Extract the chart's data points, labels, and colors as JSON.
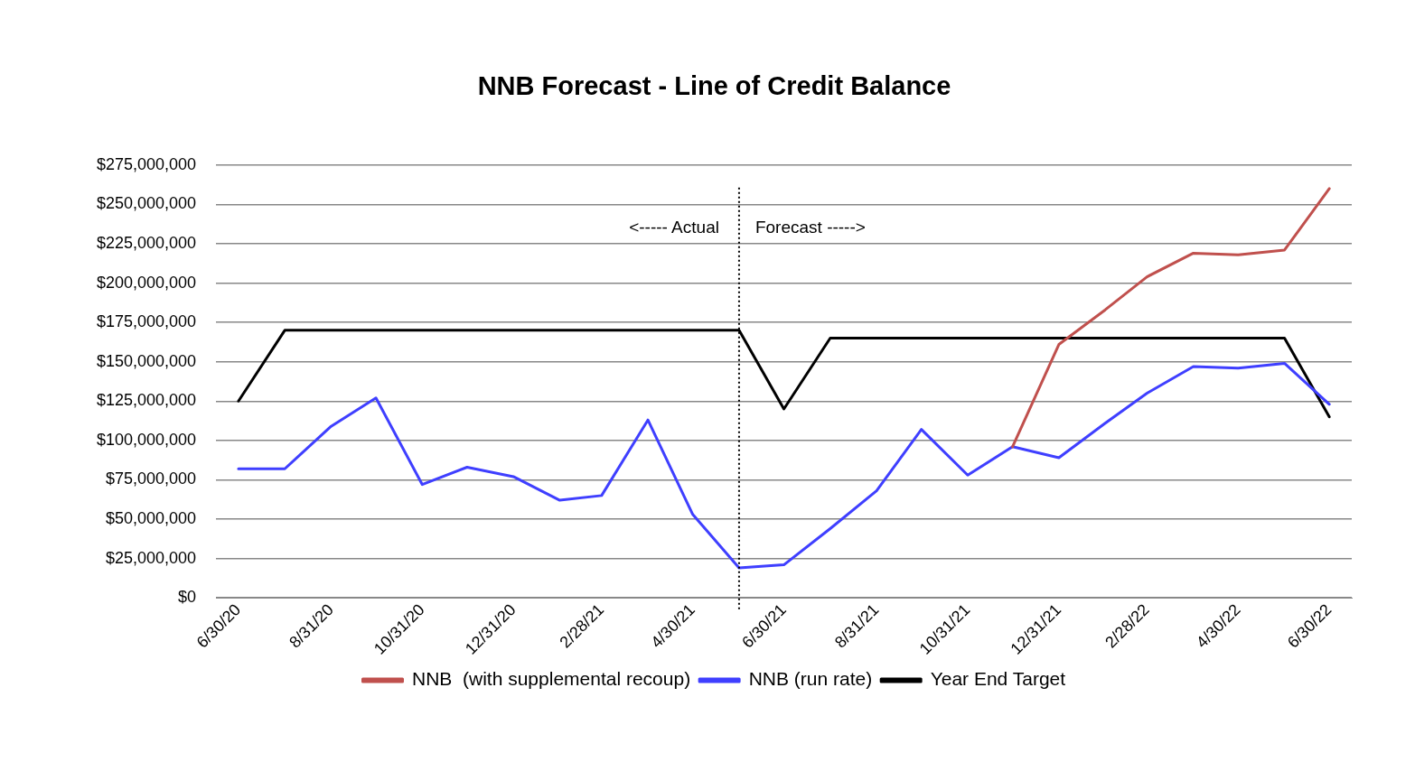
{
  "chart_data": {
    "type": "line",
    "title": "NNB Forecast - Line of Credit Balance",
    "x": [
      "2020-06-30",
      "2020-07-31",
      "2020-08-31",
      "2020-09-30",
      "2020-10-31",
      "2020-11-30",
      "2020-12-31",
      "2021-01-31",
      "2021-02-28",
      "2021-03-31",
      "2021-04-30",
      "2021-05-31",
      "2021-06-30",
      "2021-07-31",
      "2021-08-31",
      "2021-09-30",
      "2021-10-31",
      "2021-11-30",
      "2021-12-31",
      "2022-01-31",
      "2022-02-28",
      "2022-03-31",
      "2022-04-30",
      "2022-05-31",
      "2022-06-30"
    ],
    "series": [
      {
        "name": "NNB  (with supplemental recoup)",
        "color": "#c0504d",
        "values": [
          null,
          null,
          null,
          null,
          null,
          null,
          null,
          null,
          null,
          null,
          null,
          null,
          null,
          null,
          null,
          null,
          null,
          96000000,
          161000000,
          183000000,
          204000000,
          219000000,
          218000000,
          221000000,
          260000000
        ]
      },
      {
        "name": "NNB (run rate)",
        "color": "#3f3fff",
        "values": [
          82000000,
          82000000,
          109000000,
          127000000,
          72000000,
          83000000,
          77000000,
          62000000,
          65000000,
          113000000,
          53000000,
          19000000,
          21000000,
          44000000,
          68000000,
          107000000,
          78000000,
          96000000,
          89000000,
          111000000,
          130000000,
          147000000,
          146000000,
          149000000,
          123000000
        ]
      },
      {
        "name": "Year End Target",
        "color": "#000000",
        "values": [
          125000000,
          170000000,
          170000000,
          170000000,
          170000000,
          170000000,
          170000000,
          170000000,
          170000000,
          170000000,
          170000000,
          170000000,
          120000000,
          165000000,
          165000000,
          165000000,
          165000000,
          165000000,
          165000000,
          165000000,
          165000000,
          165000000,
          165000000,
          165000000,
          115000000
        ]
      }
    ],
    "xlim": [
      "2020-06-15",
      "2022-07-15"
    ],
    "xticks": [
      {
        "value": "2020-06-30",
        "label": "6/30/20"
      },
      {
        "value": "2020-08-31",
        "label": "8/31/20"
      },
      {
        "value": "2020-10-31",
        "label": "10/31/20"
      },
      {
        "value": "2020-12-31",
        "label": "12/31/20"
      },
      {
        "value": "2021-02-28",
        "label": "2/28/21"
      },
      {
        "value": "2021-04-30",
        "label": "4/30/21"
      },
      {
        "value": "2021-06-30",
        "label": "6/30/21"
      },
      {
        "value": "2021-08-31",
        "label": "8/31/21"
      },
      {
        "value": "2021-10-31",
        "label": "10/31/21"
      },
      {
        "value": "2021-12-31",
        "label": "12/31/21"
      },
      {
        "value": "2022-02-28",
        "label": "2/28/22"
      },
      {
        "value": "2022-04-30",
        "label": "4/30/22"
      },
      {
        "value": "2022-06-30",
        "label": "6/30/22"
      }
    ],
    "ylim": [
      0,
      275000000
    ],
    "yticks": [
      {
        "value": 0,
        "label": "$0"
      },
      {
        "value": 25000000,
        "label": "$25,000,000"
      },
      {
        "value": 50000000,
        "label": "$50,000,000"
      },
      {
        "value": 75000000,
        "label": "$75,000,000"
      },
      {
        "value": 100000000,
        "label": "$100,000,000"
      },
      {
        "value": 125000000,
        "label": "$125,000,000"
      },
      {
        "value": 150000000,
        "label": "$150,000,000"
      },
      {
        "value": 175000000,
        "label": "$175,000,000"
      },
      {
        "value": 200000000,
        "label": "$200,000,000"
      },
      {
        "value": 225000000,
        "label": "$225,000,000"
      },
      {
        "value": 250000000,
        "label": "$250,000,000"
      },
      {
        "value": 275000000,
        "label": "$275,000,000"
      }
    ],
    "ref_lines": [
      {
        "axis": "x",
        "value": "2021-05-31",
        "color": "#000000",
        "line_style": "dotted"
      }
    ],
    "annotations": [
      "<----- Actual",
      "Forecast ----->"
    ],
    "grid": "y",
    "legend": "bottom",
    "marker": "none",
    "line_style": "solid"
  }
}
